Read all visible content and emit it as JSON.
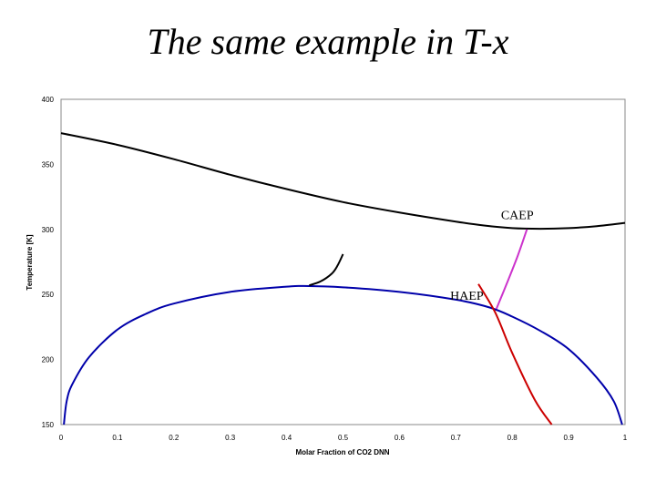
{
  "slide": {
    "title": "The same example in T-x"
  },
  "chart_data": {
    "type": "line",
    "title": "",
    "xlabel": "Molar Fraction of CO2 DNN",
    "ylabel": "Temperature [K]",
    "xlim": [
      0,
      1
    ],
    "ylim": [
      150,
      400
    ],
    "x_ticks": [
      "0",
      "0.1",
      "0.2",
      "0.3",
      "0.4",
      "0.5",
      "0.6",
      "0.7",
      "0.8",
      "0.9",
      "1"
    ],
    "y_ticks": [
      "150",
      "200",
      "250",
      "300",
      "350",
      "400"
    ],
    "grid": false,
    "legend": "none",
    "series": [
      {
        "color": "#000000",
        "x": [
          0,
          0.1,
          0.2,
          0.3,
          0.4,
          0.5,
          0.6,
          0.7,
          0.75,
          0.8,
          0.85,
          0.9,
          0.95,
          1.0
        ],
        "y": [
          374,
          365,
          354,
          342,
          331,
          321,
          313,
          306,
          303,
          301,
          300.5,
          301,
          302.5,
          305
        ]
      },
      {
        "color": "#0000aa",
        "x": [
          0.005,
          0.01,
          0.02,
          0.05,
          0.1,
          0.15,
          0.2,
          0.3,
          0.4,
          0.43,
          0.5,
          0.6,
          0.7,
          0.76,
          0.8,
          0.85,
          0.9,
          0.95,
          0.98,
          0.995
        ],
        "y": [
          150,
          168,
          181,
          202,
          223,
          235,
          243,
          252,
          256,
          256.5,
          255.5,
          252,
          246,
          240,
          233,
          222,
          208,
          186,
          168,
          150
        ]
      },
      {
        "color": "#000000",
        "x": [
          0.44,
          0.46,
          0.48,
          0.49,
          0.5
        ],
        "y": [
          257,
          260,
          266,
          272,
          281
        ]
      },
      {
        "color": "#cc0000",
        "x": [
          0.74,
          0.77,
          0.8,
          0.84,
          0.87
        ],
        "y": [
          258,
          236,
          205,
          169,
          150
        ]
      },
      {
        "color": "#cc33cc",
        "x": [
          0.772,
          0.79,
          0.81,
          0.826
        ],
        "y": [
          239,
          258,
          280,
          300
        ]
      }
    ],
    "annotations": [
      {
        "text": "CAEP",
        "x": 0.78,
        "y": 308
      },
      {
        "text": "HAEP",
        "x": 0.69,
        "y": 246
      }
    ]
  }
}
